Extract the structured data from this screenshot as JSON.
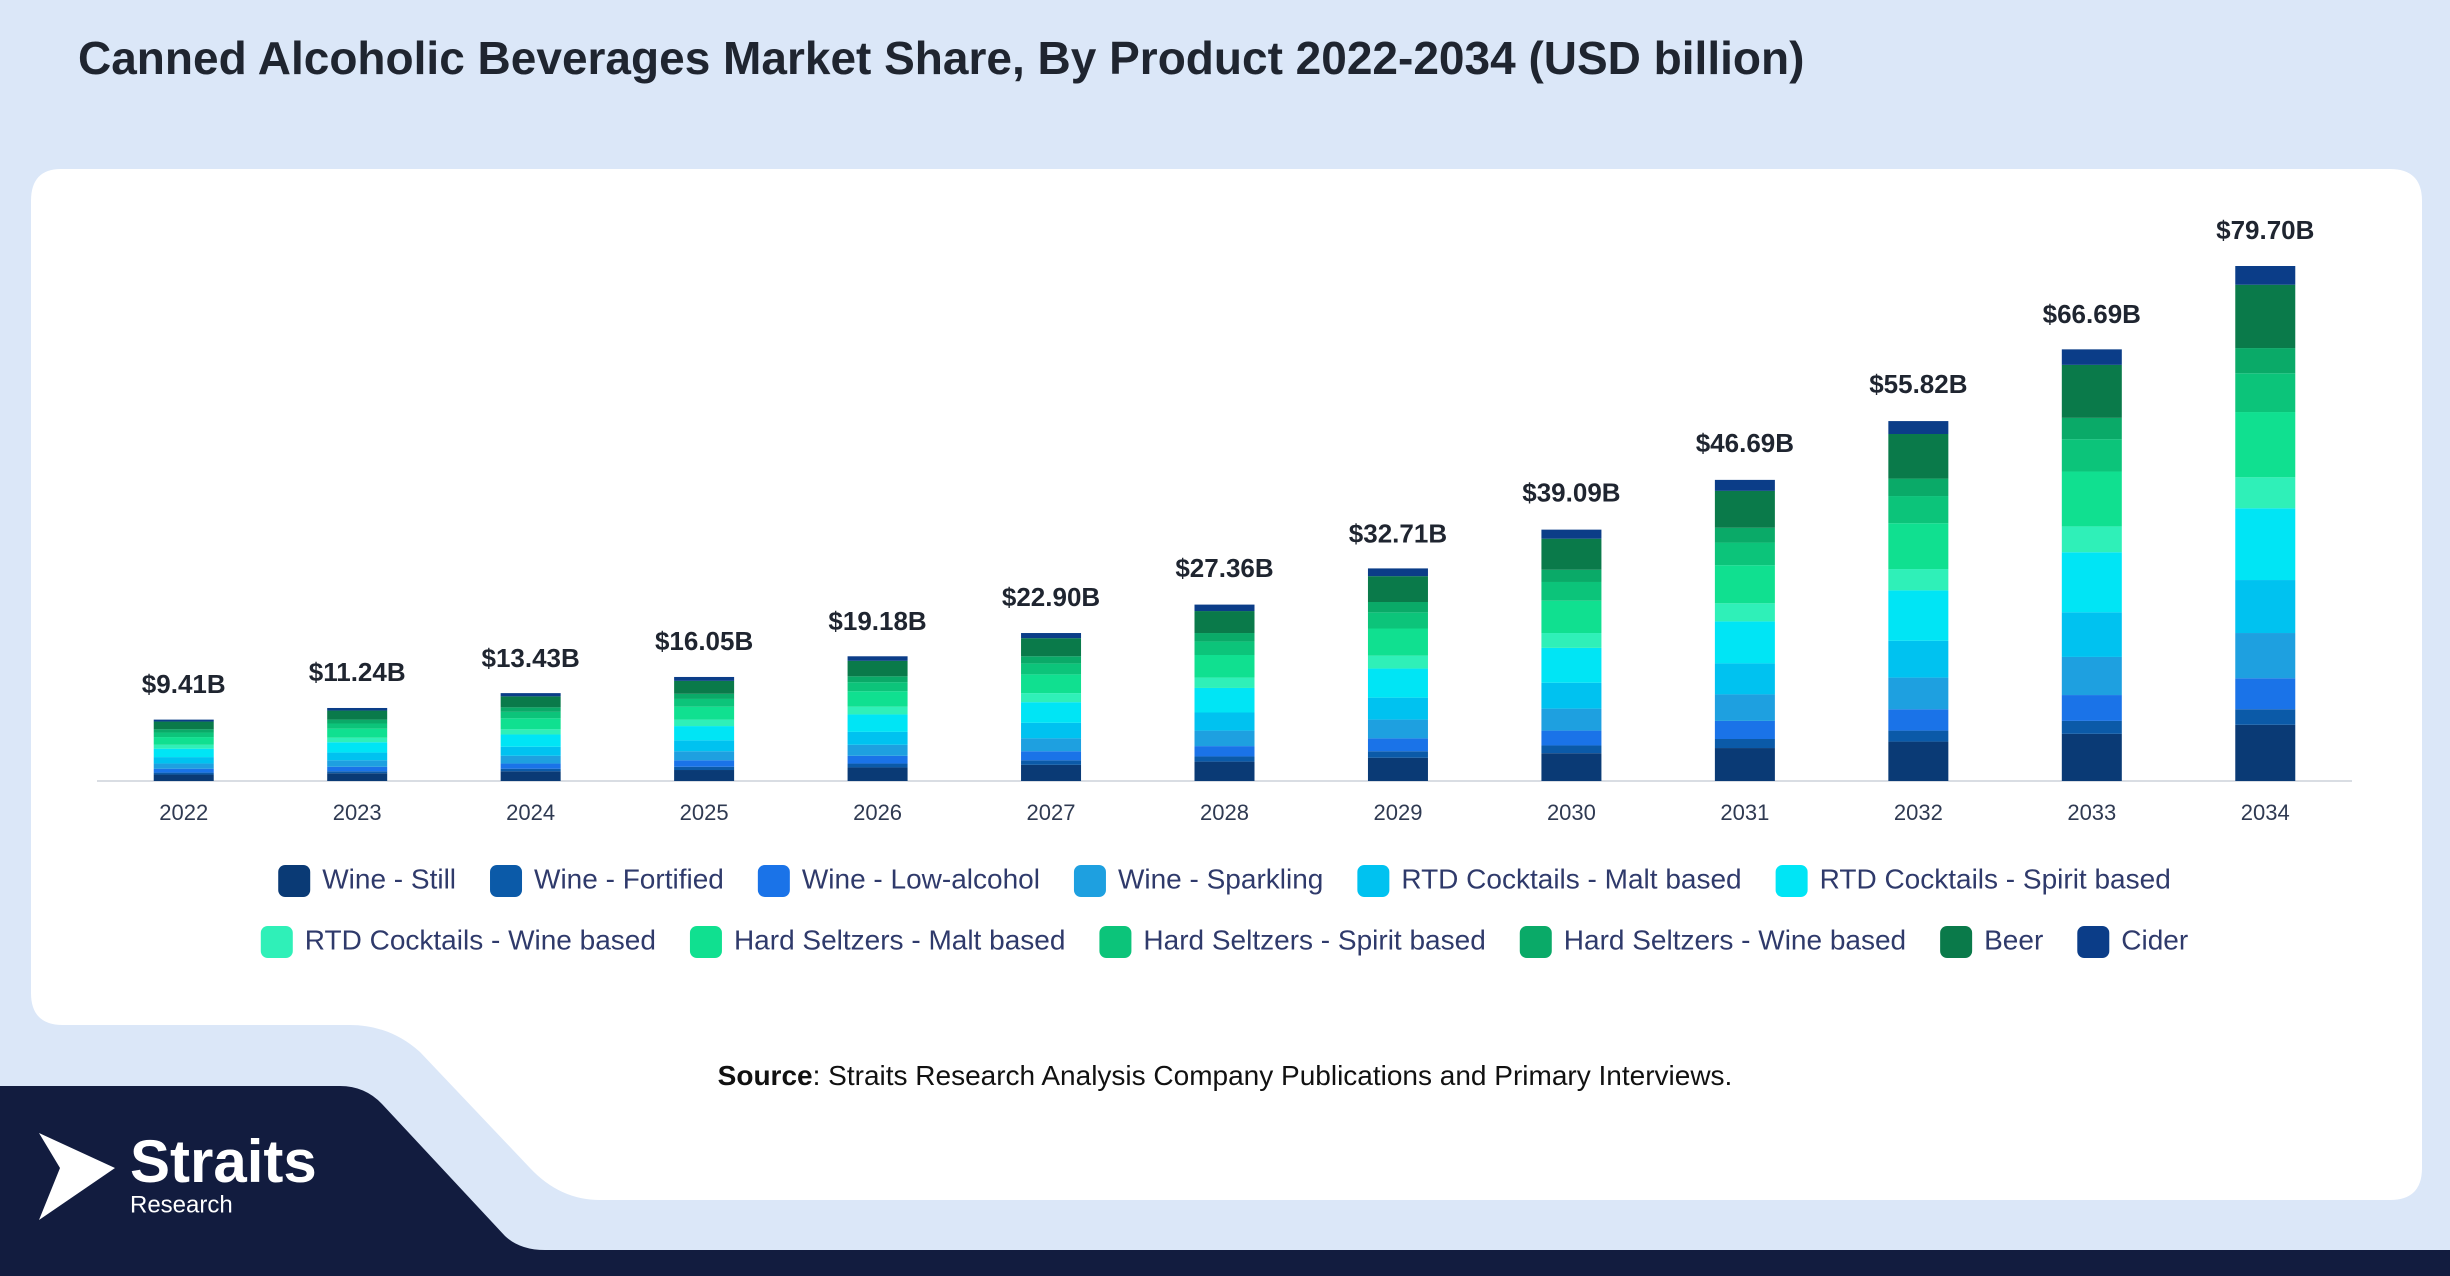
{
  "chart_data": {
    "type": "stacked_bar",
    "title": "Canned Alcoholic Beverages Market Share, By Product 2022-2034 (USD billion)",
    "categories": [
      "2022",
      "2023",
      "2024",
      "2025",
      "2026",
      "2027",
      "2028",
      "2029",
      "2030",
      "2031",
      "2032",
      "2033",
      "2034"
    ],
    "series": [
      {
        "name": "Wine - Still",
        "color": "#0a3a75",
        "values": [
          1.0,
          1.2,
          1.5,
          1.7,
          2.1,
          2.5,
          3.0,
          3.6,
          4.3,
          5.1,
          6.1,
          7.3,
          8.7
        ]
      },
      {
        "name": "Wine - Fortified",
        "color": "#0b5aa8",
        "values": [
          0.3,
          0.3,
          0.4,
          0.5,
          0.6,
          0.7,
          0.8,
          1.0,
          1.2,
          1.4,
          1.7,
          2.0,
          2.4
        ]
      },
      {
        "name": "Wine - Low-alcohol",
        "color": "#1a73e8",
        "values": [
          0.6,
          0.7,
          0.8,
          1.0,
          1.2,
          1.4,
          1.6,
          2.0,
          2.3,
          2.8,
          3.3,
          4.0,
          4.8
        ]
      },
      {
        "name": "Wine - Sparkling",
        "color": "#1ea0e0",
        "values": [
          0.8,
          1.0,
          1.2,
          1.4,
          1.7,
          2.0,
          2.4,
          2.9,
          3.4,
          4.1,
          4.9,
          5.9,
          7.0
        ]
      },
      {
        "name": "RTD Cocktails - Malt based",
        "color": "#00c2f0",
        "values": [
          1.0,
          1.2,
          1.4,
          1.7,
          2.0,
          2.4,
          2.8,
          3.4,
          4.0,
          4.8,
          5.7,
          6.9,
          8.2
        ]
      },
      {
        "name": "RTD Cocktails - Spirit based",
        "color": "#00e5f5",
        "values": [
          1.3,
          1.6,
          1.9,
          2.2,
          2.7,
          3.2,
          3.8,
          4.5,
          5.4,
          6.5,
          7.8,
          9.3,
          11.1
        ]
      },
      {
        "name": "RTD Cocktails - Wine based",
        "color": "#2ff0b8",
        "values": [
          0.6,
          0.7,
          0.8,
          1.0,
          1.2,
          1.4,
          1.6,
          2.0,
          2.3,
          2.8,
          3.3,
          4.0,
          4.8
        ]
      },
      {
        "name": "Hard Seltzers - Malt based",
        "color": "#10e090",
        "values": [
          1.2,
          1.4,
          1.7,
          2.0,
          2.4,
          2.9,
          3.5,
          4.2,
          5.0,
          5.9,
          7.1,
          8.5,
          10.1
        ]
      },
      {
        "name": "Hard Seltzers - Spirit based",
        "color": "#0cc47a",
        "values": [
          0.7,
          0.8,
          1.0,
          1.2,
          1.4,
          1.7,
          2.1,
          2.5,
          2.9,
          3.5,
          4.2,
          5.0,
          6.0
        ]
      },
      {
        "name": "Hard Seltzers - Wine based",
        "color": "#0aaa68",
        "values": [
          0.5,
          0.6,
          0.7,
          0.8,
          0.9,
          1.1,
          1.3,
          1.6,
          1.9,
          2.3,
          2.7,
          3.3,
          3.9
        ]
      },
      {
        "name": "Beer",
        "color": "#0a7a4a",
        "values": [
          1.2,
          1.4,
          1.7,
          2.0,
          2.4,
          2.8,
          3.4,
          4.0,
          4.8,
          5.7,
          6.9,
          8.2,
          9.8
        ]
      },
      {
        "name": "Cider",
        "color": "#0b3d88",
        "values": [
          0.3,
          0.4,
          0.5,
          0.6,
          0.7,
          0.8,
          1.0,
          1.2,
          1.4,
          1.7,
          2.0,
          2.4,
          2.9
        ]
      }
    ],
    "totals": {
      "values": [
        9.41,
        11.24,
        13.43,
        16.05,
        19.18,
        22.9,
        27.36,
        32.71,
        39.09,
        46.69,
        55.82,
        66.69,
        79.7
      ],
      "value_labels": [
        "$9.41B",
        "$11.24B",
        "$13.43B",
        "$16.05B",
        "$19.18B",
        "$22.90B",
        "$27.36B",
        "$32.71B",
        "$39.09B",
        "$46.69B",
        "$55.82B",
        "$66.69B",
        "$79.70B"
      ]
    },
    "legend_position": "bottom",
    "source_label": "Source",
    "source_text": ": Straits Research Analysis Company Publications and Primary Interviews.",
    "logo_name": "Straits",
    "logo_sub": "Research"
  }
}
